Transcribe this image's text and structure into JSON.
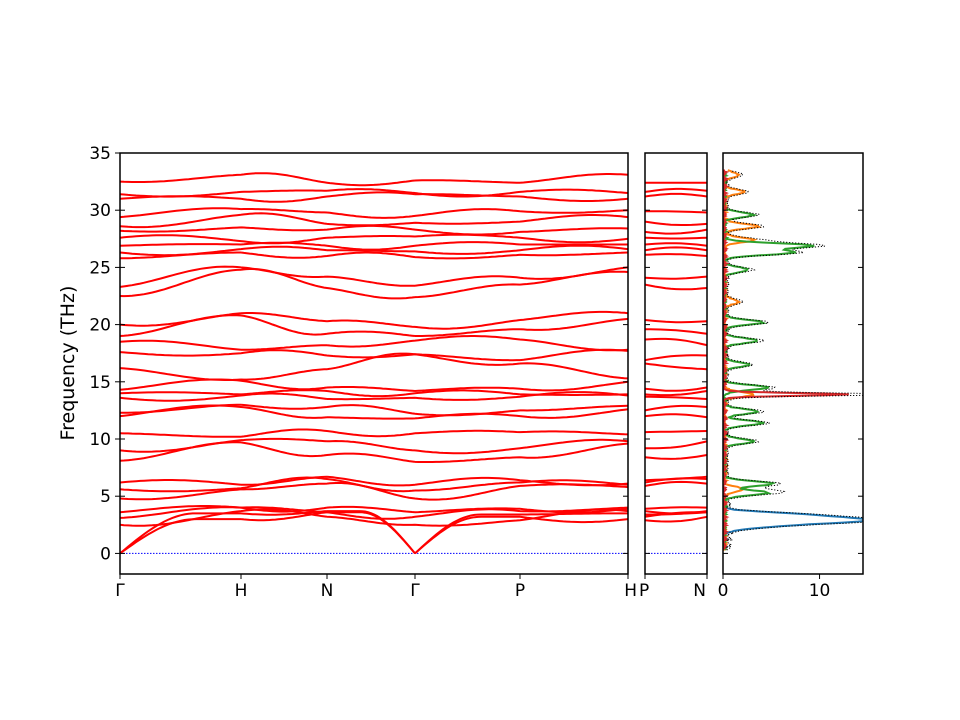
{
  "chart_data": [
    {
      "type": "line",
      "panel": "band-structure",
      "ylabel": "Frequency (THz)",
      "ylim": [
        -1.8,
        35
      ],
      "yticks": [
        0,
        5,
        10,
        15,
        20,
        25,
        30,
        35
      ],
      "x_segments": [
        "Γ",
        "H",
        "N",
        "Γ",
        "P",
        "H"
      ],
      "series": [
        {
          "endpoints": [
            0,
            0,
            0,
            0,
            0,
            0
          ]
        },
        {
          "endpoints": [
            0,
            3.0,
            3.6,
            0,
            3.2,
            3.0
          ]
        },
        {
          "endpoints": [
            0,
            3.5,
            3.7,
            0,
            3.4,
            3.5
          ]
        },
        {
          "endpoints": [
            2.5,
            3.7,
            3.2,
            2.5,
            2.9,
            3.7
          ]
        },
        {
          "endpoints": [
            3.1,
            4.0,
            3.6,
            3.2,
            3.7,
            4.0
          ]
        },
        {
          "endpoints": [
            3.6,
            4.0,
            4.0,
            3.6,
            3.9,
            3.9
          ]
        },
        {
          "endpoints": [
            4.8,
            5.6,
            6.1,
            4.8,
            5.9,
            5.8
          ]
        },
        {
          "endpoints": [
            5.6,
            5.7,
            6.5,
            5.5,
            6.2,
            6.0
          ]
        },
        {
          "endpoints": [
            6.2,
            6.0,
            6.7,
            6.0,
            6.4,
            6.1
          ]
        },
        {
          "endpoints": [
            8.1,
            9.7,
            8.6,
            8.0,
            8.4,
            9.6
          ]
        },
        {
          "endpoints": [
            9.0,
            9.9,
            9.8,
            9.0,
            9.2,
            9.8
          ]
        },
        {
          "endpoints": [
            10.5,
            10.2,
            10.7,
            10.5,
            10.6,
            10.4
          ]
        },
        {
          "endpoints": [
            12.0,
            12.8,
            11.9,
            11.8,
            12.0,
            12.6
          ]
        },
        {
          "endpoints": [
            12.3,
            13.0,
            12.8,
            12.2,
            12.5,
            12.9
          ]
        },
        {
          "endpoints": [
            13.6,
            13.8,
            13.5,
            13.6,
            13.7,
            13.8
          ]
        },
        {
          "endpoints": [
            14.0,
            13.9,
            14.2,
            14.0,
            13.9,
            13.9
          ]
        },
        {
          "endpoints": [
            14.3,
            15.1,
            14.5,
            14.2,
            14.4,
            15.0
          ]
        },
        {
          "endpoints": [
            16.2,
            15.2,
            16.1,
            17.4,
            16.6,
            15.3
          ]
        },
        {
          "endpoints": [
            17.6,
            17.5,
            17.3,
            17.4,
            16.9,
            17.7
          ]
        },
        {
          "endpoints": [
            18.5,
            17.8,
            18.2,
            18.6,
            18.7,
            17.8
          ]
        },
        {
          "endpoints": [
            19.0,
            20.8,
            19.2,
            19.0,
            19.6,
            20.5
          ]
        },
        {
          "endpoints": [
            20.0,
            21.0,
            20.3,
            19.8,
            20.4,
            21.0
          ]
        },
        {
          "endpoints": [
            22.5,
            24.8,
            23.2,
            22.4,
            23.5,
            24.6
          ]
        },
        {
          "endpoints": [
            23.3,
            25.0,
            24.2,
            23.4,
            24.1,
            25.0
          ]
        },
        {
          "endpoints": [
            25.8,
            26.3,
            26.0,
            25.9,
            26.1,
            26.3
          ]
        },
        {
          "endpoints": [
            26.3,
            26.6,
            26.5,
            26.4,
            26.5,
            26.6
          ]
        },
        {
          "endpoints": [
            26.9,
            27.0,
            26.9,
            26.9,
            27.0,
            27.0
          ]
        },
        {
          "endpoints": [
            27.6,
            27.3,
            27.6,
            27.7,
            27.6,
            27.5
          ]
        },
        {
          "endpoints": [
            28.2,
            28.5,
            28.3,
            28.3,
            28.1,
            28.4
          ]
        },
        {
          "endpoints": [
            28.6,
            29.6,
            28.8,
            28.9,
            29.0,
            29.4
          ]
        },
        {
          "endpoints": [
            29.4,
            30.1,
            29.8,
            29.5,
            29.9,
            30.0
          ]
        },
        {
          "endpoints": [
            31.0,
            31.0,
            31.2,
            31.4,
            31.2,
            31.0
          ]
        },
        {
          "endpoints": [
            31.4,
            31.6,
            31.7,
            31.5,
            31.6,
            31.5
          ]
        },
        {
          "endpoints": [
            32.5,
            33.1,
            32.4,
            32.6,
            32.4,
            33.1
          ]
        }
      ]
    },
    {
      "type": "line",
      "panel": "band-structure-extra-path",
      "x_segments": [
        "P",
        "N"
      ],
      "ylim": [
        -1.8,
        35
      ]
    },
    {
      "type": "line",
      "panel": "density-of-states",
      "xlim": [
        0,
        14.5
      ],
      "xticks": [
        0,
        10
      ],
      "ylim": [
        -1.8,
        35
      ],
      "series": [
        {
          "color": "#1f77b4",
          "peaks": [
            [
              2.7,
              8.0
            ],
            [
              3.0,
              10.0
            ],
            [
              3.4,
              7.0
            ],
            [
              2.3,
              3.0
            ]
          ]
        },
        {
          "color": "#ff7f0e",
          "peaks": [
            [
              5.6,
              2.0
            ],
            [
              13.9,
              3.0
            ],
            [
              22.0,
              1.5
            ],
            [
              27.4,
              3.0
            ],
            [
              28.6,
              3.5
            ],
            [
              31.6,
              2.0
            ],
            [
              33.1,
              1.5
            ]
          ]
        },
        {
          "color": "#2ca02c",
          "peaks": [
            [
              5.3,
              4.5
            ],
            [
              6.1,
              5.0
            ],
            [
              9.8,
              3.0
            ],
            [
              11.4,
              4.0
            ],
            [
              12.4,
              3.5
            ],
            [
              14.5,
              4.5
            ],
            [
              16.5,
              2.5
            ],
            [
              18.6,
              3.5
            ],
            [
              20.2,
              4.0
            ],
            [
              24.8,
              2.5
            ],
            [
              26.3,
              7.0
            ],
            [
              26.9,
              9.0
            ],
            [
              29.6,
              3.0
            ]
          ]
        },
        {
          "color": "#d62728",
          "peaks": [
            [
              13.9,
              13.0
            ]
          ]
        }
      ],
      "total_dos": {
        "color": "#000000",
        "style": "dotted"
      }
    }
  ]
}
